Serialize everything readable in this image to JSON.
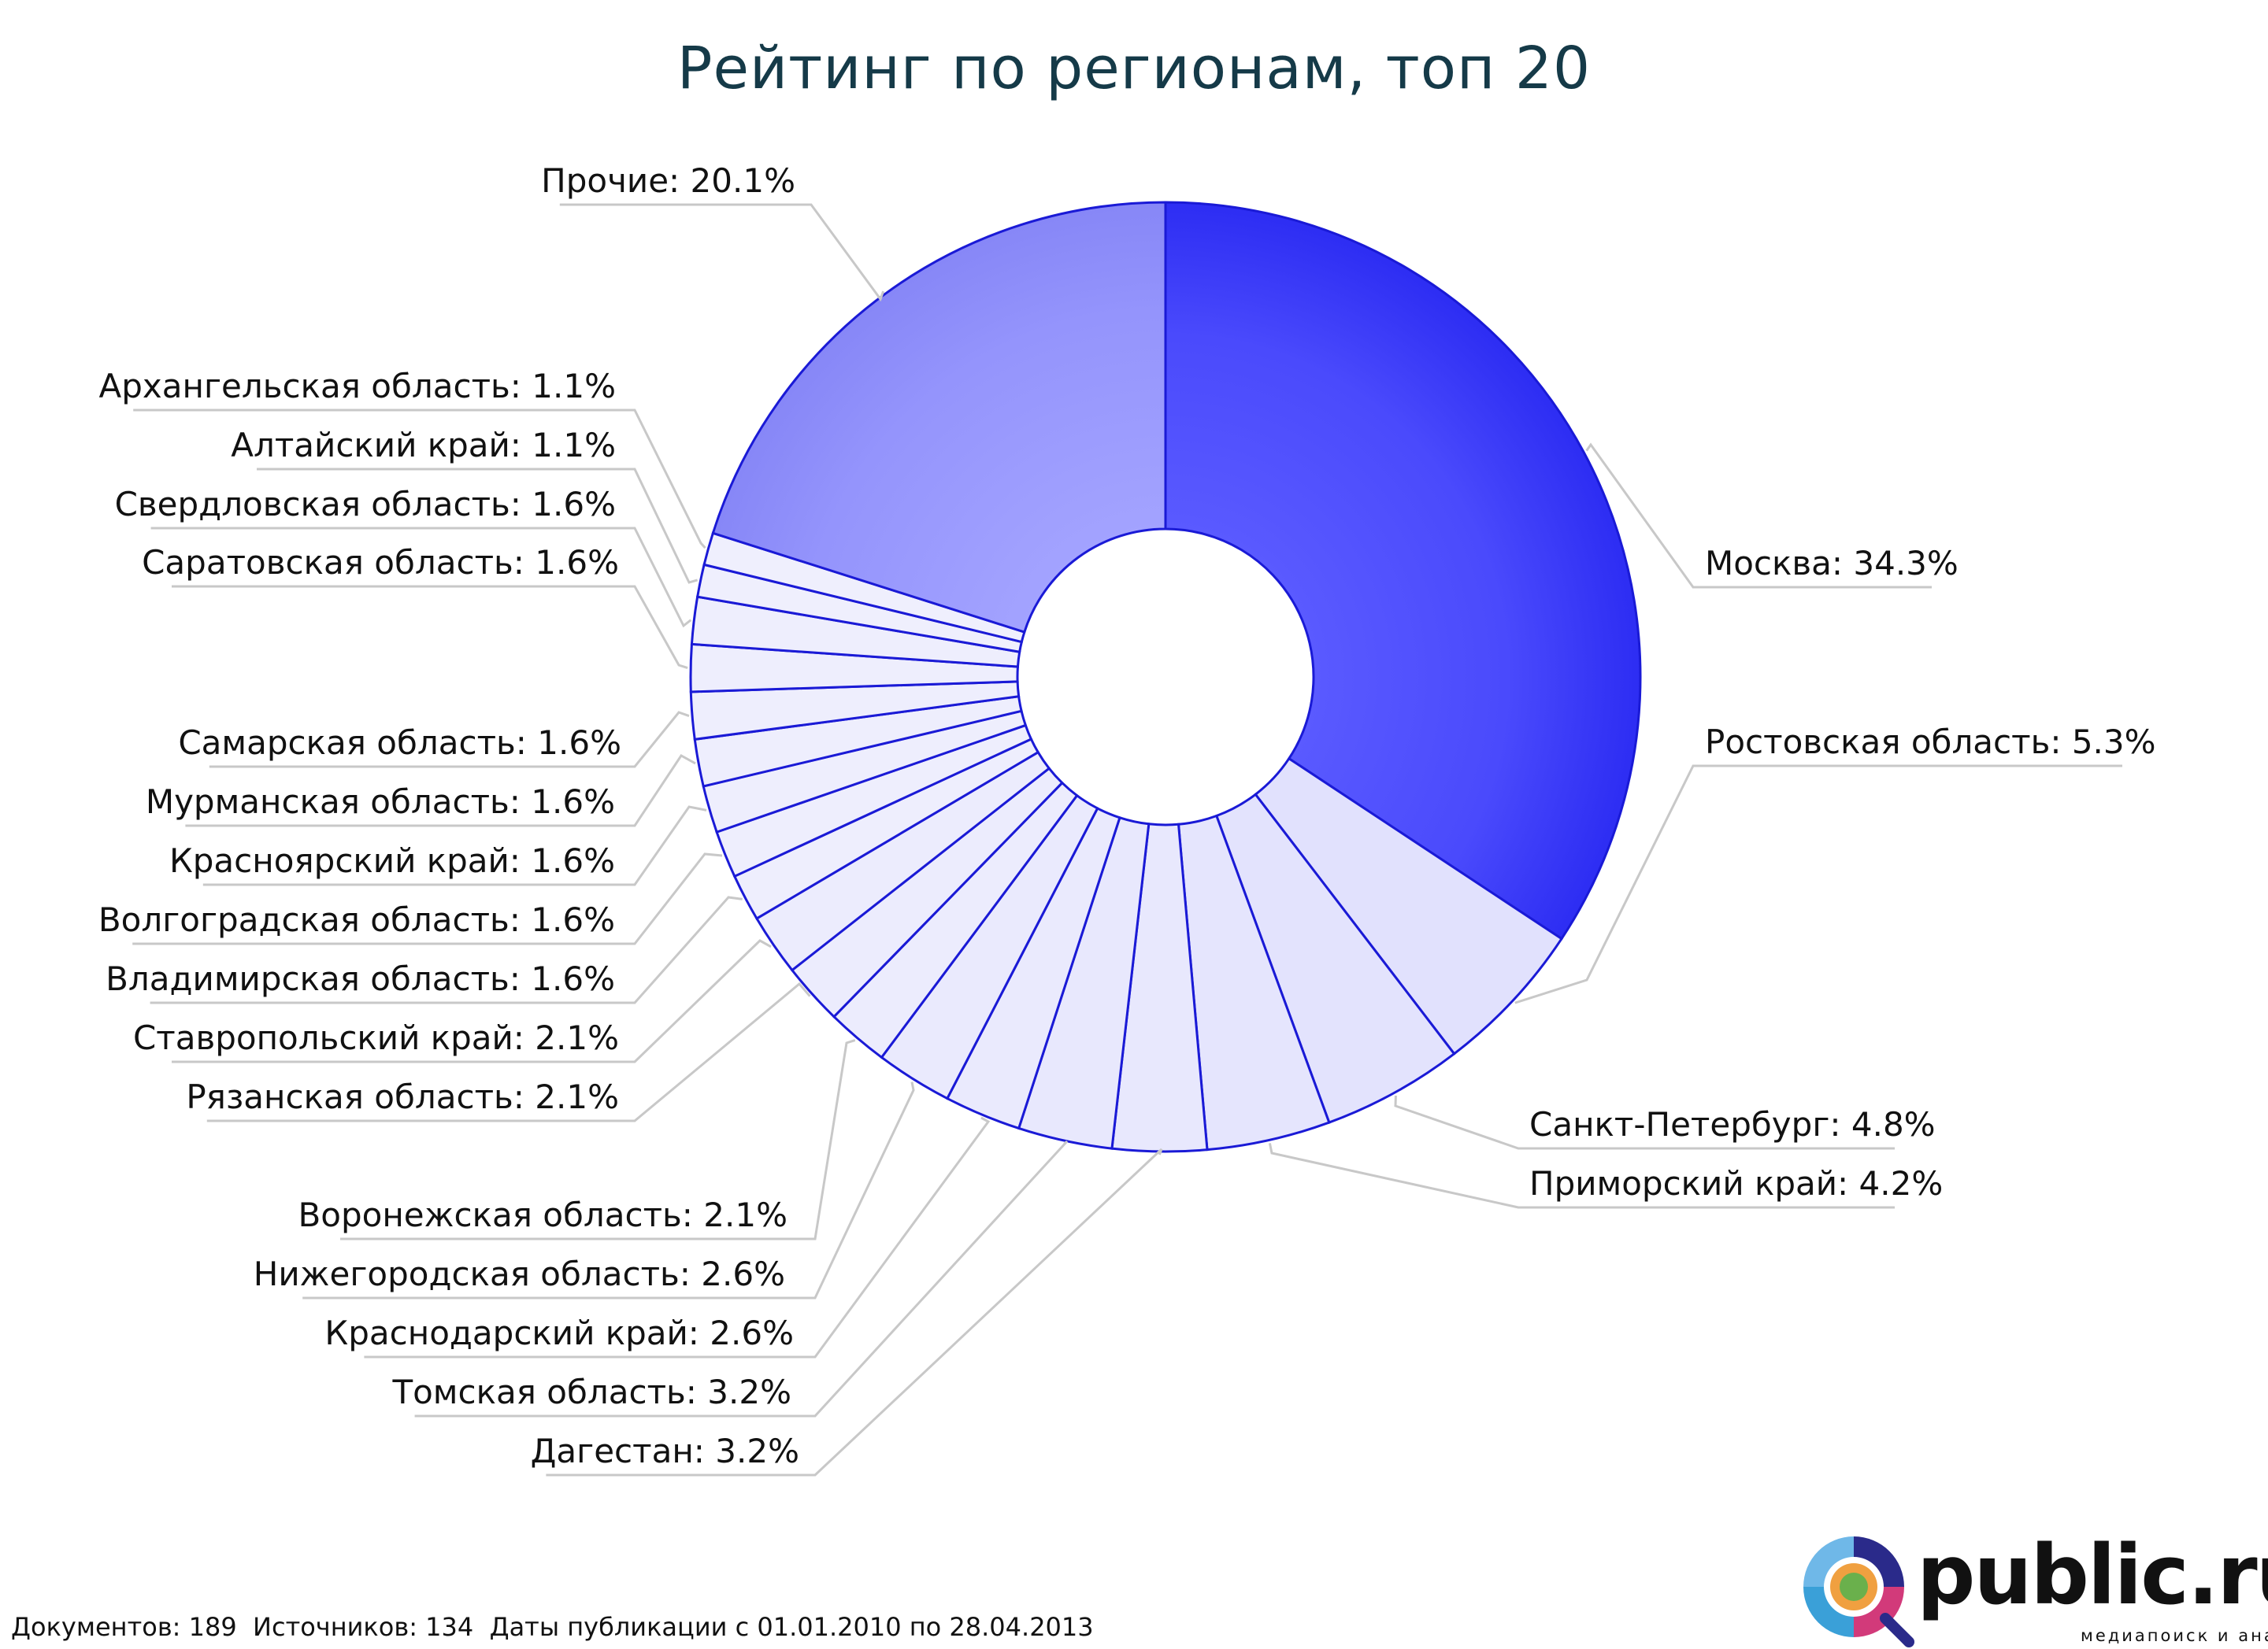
{
  "title": "Рейтинг по регионам, топ 20",
  "footer": "Документов: 189  Источников: 134  Даты публикации с 01.01.2010 по 28.04.2013",
  "logo": {
    "text": "public.ru",
    "tagline": "медиапоиск и анализ"
  },
  "colors": {
    "primary": "#2323f5",
    "secondary": "#8f8ffa",
    "pale": "#f1f1fd",
    "outline": "#1a1ad6",
    "leader": "#c8c8c8",
    "title": "#153a48"
  },
  "chart_data": {
    "type": "pie",
    "variant": "donut",
    "title": "Рейтинг по регионам, топ 20",
    "slices": [
      {
        "label": "Москва",
        "value": 34.3,
        "text": "Москва: 34.3%"
      },
      {
        "label": "Ростовская область",
        "value": 5.3,
        "text": "Ростовская область: 5.3%"
      },
      {
        "label": "Санкт-Петербург",
        "value": 4.8,
        "text": "Санкт-Петербург: 4.8%"
      },
      {
        "label": "Приморский край",
        "value": 4.2,
        "text": "Приморский край: 4.2%"
      },
      {
        "label": "Дагестан",
        "value": 3.2,
        "text": "Дагестан: 3.2%"
      },
      {
        "label": "Томская область",
        "value": 3.2,
        "text": "Томская область: 3.2%"
      },
      {
        "label": "Краснодарский край",
        "value": 2.6,
        "text": "Краснодарский край: 2.6%"
      },
      {
        "label": "Нижегородская область",
        "value": 2.6,
        "text": "Нижегородская область: 2.6%"
      },
      {
        "label": "Воронежская область",
        "value": 2.1,
        "text": "Воронежская область: 2.1%"
      },
      {
        "label": "Рязанская область",
        "value": 2.1,
        "text": "Рязанская область: 2.1%"
      },
      {
        "label": "Ставропольский край",
        "value": 2.1,
        "text": "Ставропольский край: 2.1%"
      },
      {
        "label": "Владимирская область",
        "value": 1.6,
        "text": "Владимирская область: 1.6%"
      },
      {
        "label": "Волгоградская область",
        "value": 1.6,
        "text": "Волгоградская область: 1.6%"
      },
      {
        "label": "Красноярский край",
        "value": 1.6,
        "text": "Красноярский край: 1.6%"
      },
      {
        "label": "Мурманская область",
        "value": 1.6,
        "text": "Мурманская область: 1.6%"
      },
      {
        "label": "Самарская область",
        "value": 1.6,
        "text": "Самарская область: 1.6%"
      },
      {
        "label": "Саратовская область",
        "value": 1.6,
        "text": "Саратовская область: 1.6%"
      },
      {
        "label": "Свердловская область",
        "value": 1.6,
        "text": "Свердловская область: 1.6%"
      },
      {
        "label": "Алтайский край",
        "value": 1.1,
        "text": "Алтайский край: 1.1%"
      },
      {
        "label": "Архангельская область",
        "value": 1.1,
        "text": "Архангельская область: 1.1%"
      },
      {
        "label": "Прочие",
        "value": 20.1,
        "text": "Прочие: 20.1%"
      }
    ]
  }
}
